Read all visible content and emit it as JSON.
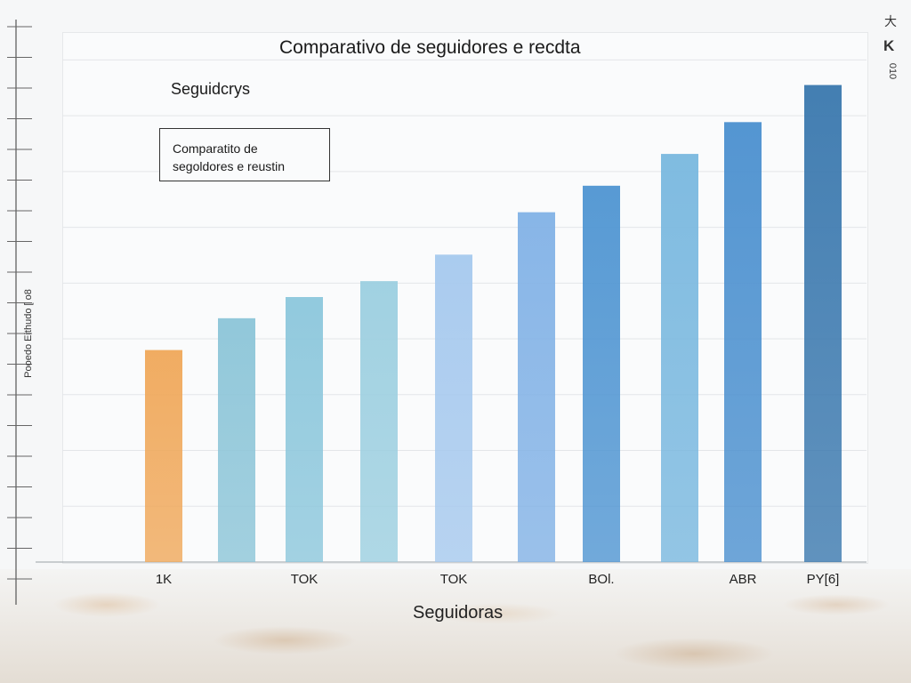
{
  "chart_data": {
    "type": "bar",
    "title": "Comparativo de seguidores e recdta",
    "series_label": "Seguidcrys",
    "legend_text": [
      "Comparatito de",
      "segoldores e reustin"
    ],
    "xlabel": "Seguidoras",
    "ylabel": "Pooedo Eithudo [ o8",
    "tick_labels": [
      "1K",
      "TOK",
      "TOK",
      "BOl.",
      "ABR",
      "PY[6]"
    ],
    "tick_label_bar_index": [
      0,
      2,
      4,
      6,
      8,
      9
    ],
    "values": [
      40,
      46,
      50,
      53,
      58,
      66,
      71,
      77,
      83,
      90
    ],
    "ylim": [
      0,
      100
    ],
    "colors": [
      "#f0a85a",
      "#8cc5d8",
      "#8cc7dc",
      "#9ccfe0",
      "#a6c9ee",
      "#82b2e6",
      "#4f95d2",
      "#79b8df",
      "#4b90cf",
      "#3a78ae"
    ],
    "grid": true
  },
  "corner": {
    "top": "大",
    "k": "K",
    "side": "010"
  }
}
